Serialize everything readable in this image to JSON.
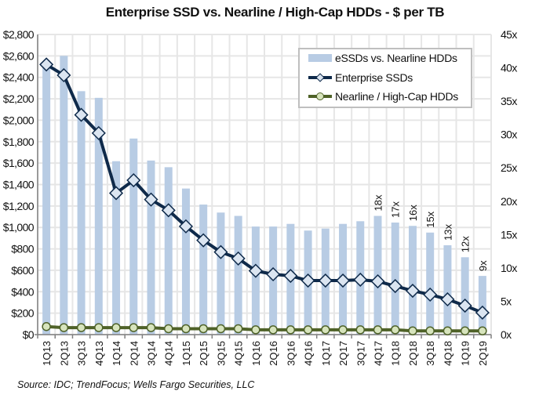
{
  "chart_data": {
    "type": "bar+line",
    "title": "Enterprise SSD vs. Nearline / High-Cap HDDs - $ per TB",
    "source": "Source: IDC; TrendFocus; Wells Fargo Securities, LLC",
    "categories": [
      "1Q13",
      "2Q13",
      "3Q13",
      "4Q13",
      "1Q14",
      "2Q14",
      "3Q14",
      "4Q14",
      "1Q15",
      "2Q15",
      "3Q15",
      "4Q15",
      "1Q16",
      "2Q16",
      "3Q16",
      "4Q16",
      "1Q17",
      "2Q17",
      "3Q17",
      "4Q17",
      "1Q18",
      "2Q18",
      "3Q18",
      "4Q18",
      "1Q19",
      "2Q19"
    ],
    "left_axis": {
      "ylim": [
        0,
        2800
      ],
      "ticks": [
        "$0",
        "$200",
        "$400",
        "$600",
        "$800",
        "$1,000",
        "$1,200",
        "$1,400",
        "$1,600",
        "$1,800",
        "$2,000",
        "$2,200",
        "$2,400",
        "$2,600",
        "$2,800"
      ]
    },
    "right_axis": {
      "ylim": [
        0,
        45
      ],
      "ticks": [
        "0x",
        "5x",
        "10x",
        "15x",
        "20x",
        "25x",
        "30x",
        "35x",
        "40x",
        "45x"
      ]
    },
    "grid": true,
    "legend_position": "top-right",
    "series": [
      {
        "name": "eSSDs vs. Nearline HDDs",
        "type": "bar",
        "axis": "right",
        "color": "#b8cce4",
        "values": [
          40.2,
          41.8,
          36.5,
          35.5,
          26.0,
          29.4,
          26.1,
          25.1,
          21.9,
          19.5,
          18.3,
          17.8,
          16.2,
          16.2,
          16.6,
          15.6,
          15.9,
          16.6,
          17.0,
          17.8,
          16.8,
          16.3,
          15.3,
          13.4,
          11.6,
          8.8
        ],
        "data_labels": [
          "",
          "",
          "",
          "",
          "",
          "",
          "",
          "",
          "",
          "",
          "",
          "",
          "",
          "",
          "",
          "",
          "",
          "",
          "",
          "18x",
          "17x",
          "16x",
          "15x",
          "13x",
          "12x",
          "9x"
        ]
      },
      {
        "name": "Enterprise SSDs",
        "type": "line",
        "axis": "left",
        "color": "#0f2a4a",
        "marker_fill": "#dbe5f1",
        "values": [
          2520,
          2420,
          2050,
          1880,
          1320,
          1440,
          1260,
          1160,
          1010,
          880,
          770,
          710,
          595,
          563,
          548,
          504,
          504,
          504,
          512,
          497,
          453,
          409,
          373,
          329,
          270,
          205
        ]
      },
      {
        "name": "Nearline / High-Cap HDDs",
        "type": "line",
        "axis": "left",
        "color": "#4f6228",
        "marker_fill": "#d7e4bd",
        "values": [
          75,
          65,
          65,
          65,
          65,
          65,
          65,
          55,
          55,
          55,
          55,
          55,
          45,
          45,
          45,
          45,
          45,
          45,
          45,
          45,
          45,
          35,
          35,
          35,
          35,
          35
        ]
      }
    ]
  }
}
